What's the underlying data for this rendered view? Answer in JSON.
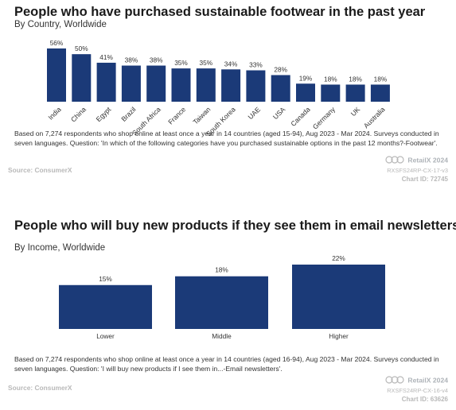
{
  "chart_data": [
    {
      "type": "bar",
      "title": "People who have purchased sustainable footwear in the past year",
      "subtitle": "By Country, Worldwide",
      "categories": [
        "India",
        "China",
        "Egypt",
        "Brazil",
        "South Africa",
        "France",
        "Taiwan",
        "South Korea",
        "UAE",
        "USA",
        "Canada",
        "Germany",
        "UK",
        "Australia"
      ],
      "values": [
        56,
        50,
        41,
        38,
        38,
        35,
        35,
        34,
        33,
        28,
        19,
        18,
        18,
        18
      ],
      "value_labels": [
        "56%",
        "50%",
        "41%",
        "38%",
        "38%",
        "35%",
        "35%",
        "34%",
        "33%",
        "28%",
        "19%",
        "18%",
        "18%",
        "18%"
      ],
      "ylim": [
        0,
        56
      ],
      "grid": false,
      "bar_color": "#1b3a78"
    },
    {
      "type": "bar",
      "title": "People who will buy new products if they see them in email newsletters",
      "subtitle": "By Income, Worldwide",
      "categories": [
        "Lower",
        "Middle",
        "Higher"
      ],
      "values": [
        15,
        18,
        22
      ],
      "value_labels": [
        "15%",
        "18%",
        "22%"
      ],
      "ylim": [
        0,
        22
      ],
      "grid": false,
      "bar_color": "#1b3a78"
    }
  ],
  "panel1": {
    "note": "Based on 7,274 respondents who shop online at least once a year in 14 countries (aged 15-94), Aug 2023 - Mar 2024. Surveys conducted in seven languages. Question: 'In which of the following categories have you purchased sustainable options in the past 12 months?-Footwear'.",
    "source": "Source: ConsumerX",
    "brand": "RetailX 2024",
    "code": "RXSFS24RP-CX-17-v3",
    "chart_id": "Chart ID: 72745",
    "cc_icon": "creative-commons-icon"
  },
  "panel2": {
    "note": "Based on 7,274 respondents who shop online at least once a year in 14 countries (aged 16-94), Aug 2023 - Mar 2024. Surveys conducted in seven languages. Question: 'I will buy new products if I see them in...-Email newsletters'.",
    "source": "Source: ConsumerX",
    "brand": "RetailX 2024",
    "code": "RXSFS24RP-CX-16-v4",
    "chart_id": "Chart ID: 63626",
    "cc_icon": "creative-commons-icon"
  }
}
